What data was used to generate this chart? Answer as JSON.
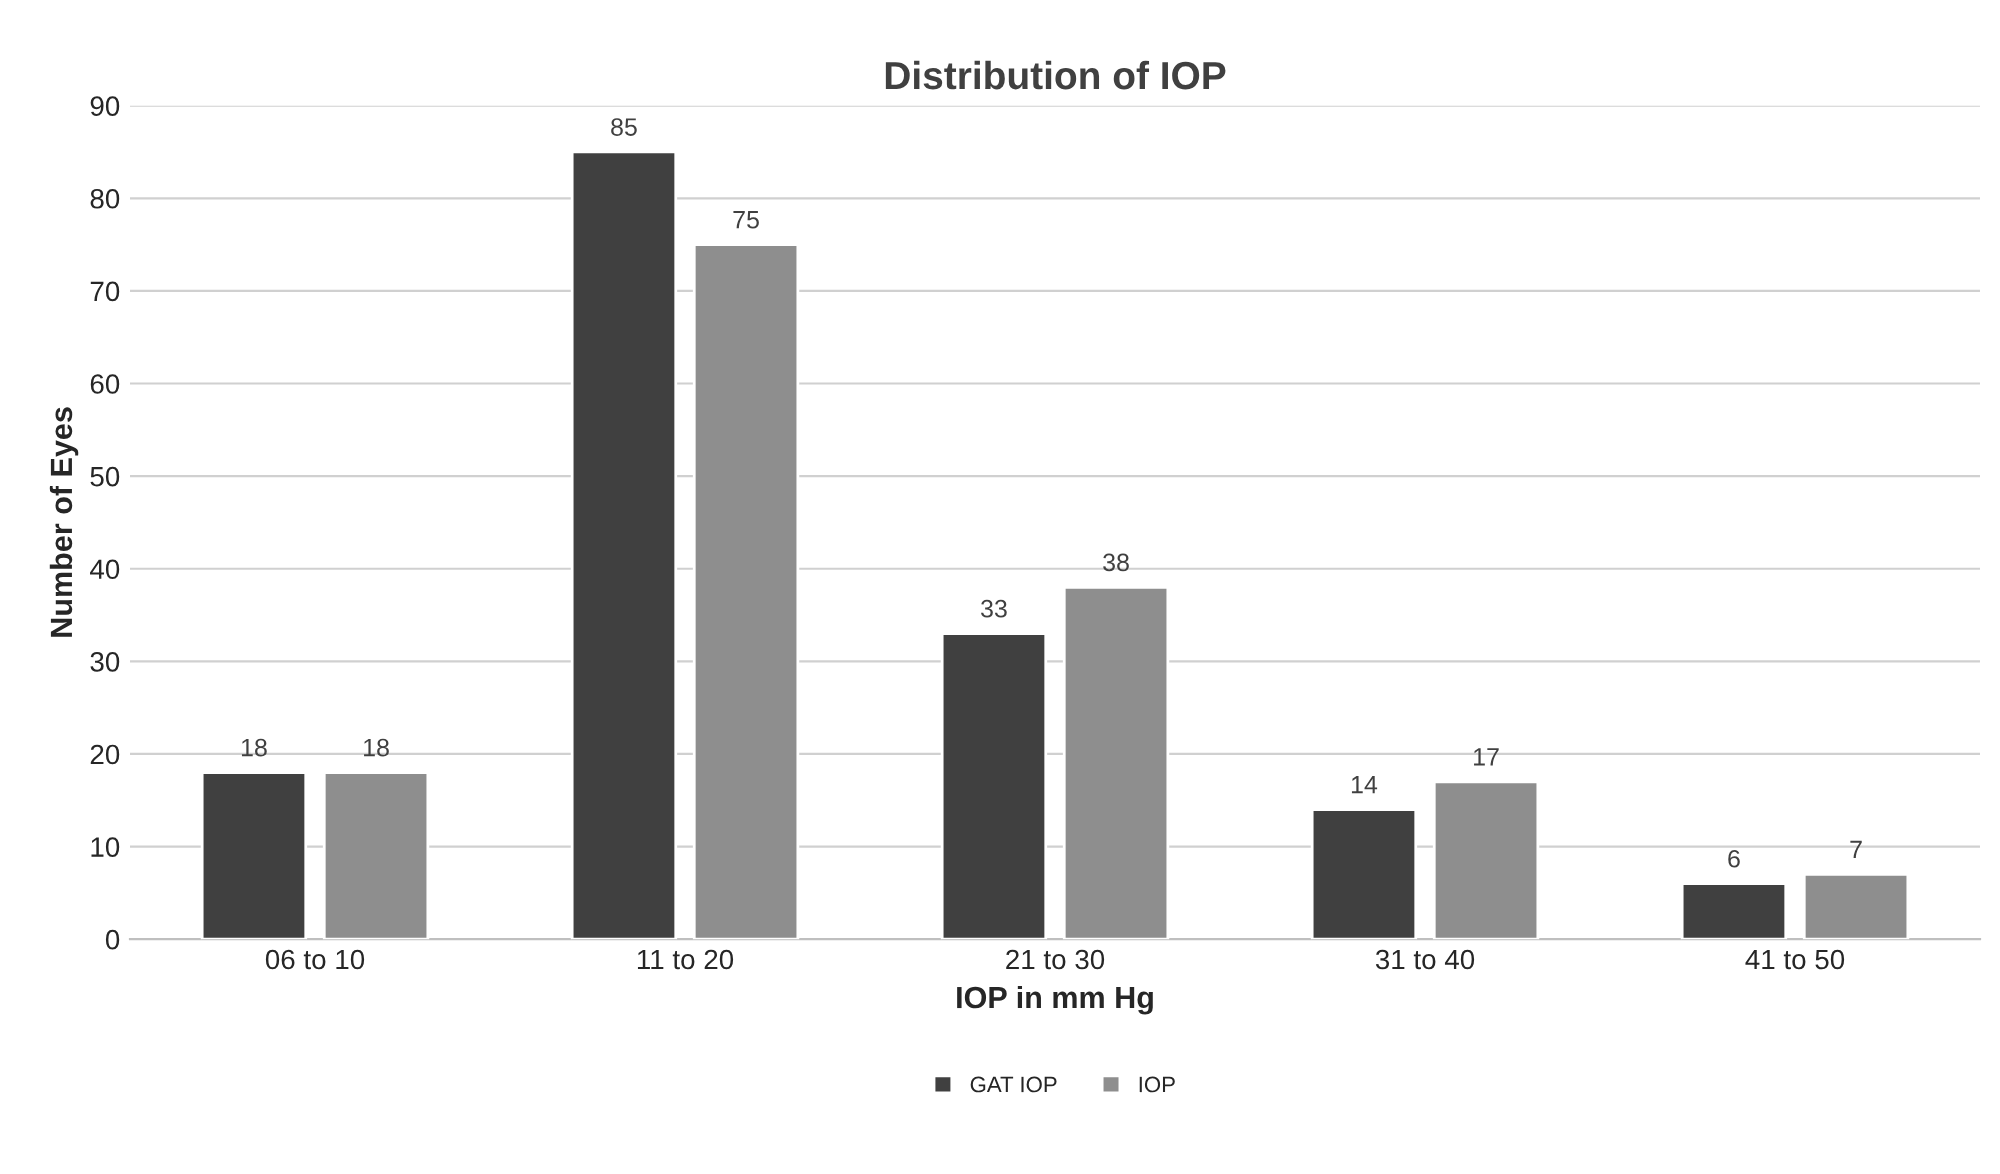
{
  "chart_data": {
    "type": "bar",
    "title": "Distribution of IOP",
    "xlabel": "IOP in mm Hg",
    "ylabel": "Number of Eyes",
    "categories": [
      "06 to 10",
      "11 to 20",
      "21 to 30",
      "31 to 40",
      "41 to 50"
    ],
    "series": [
      {
        "name": "GAT IOP",
        "color": "#404040",
        "values": [
          18,
          85,
          33,
          14,
          6
        ]
      },
      {
        "name": "IOP",
        "color": "#8e8e8e",
        "values": [
          18,
          75,
          38,
          17,
          7
        ]
      }
    ],
    "ylim": [
      0,
      90
    ],
    "yticks": [
      0,
      10,
      20,
      30,
      40,
      50,
      60,
      70,
      80,
      90
    ],
    "grid": "y",
    "legend": "bottom",
    "data_labels": true
  }
}
